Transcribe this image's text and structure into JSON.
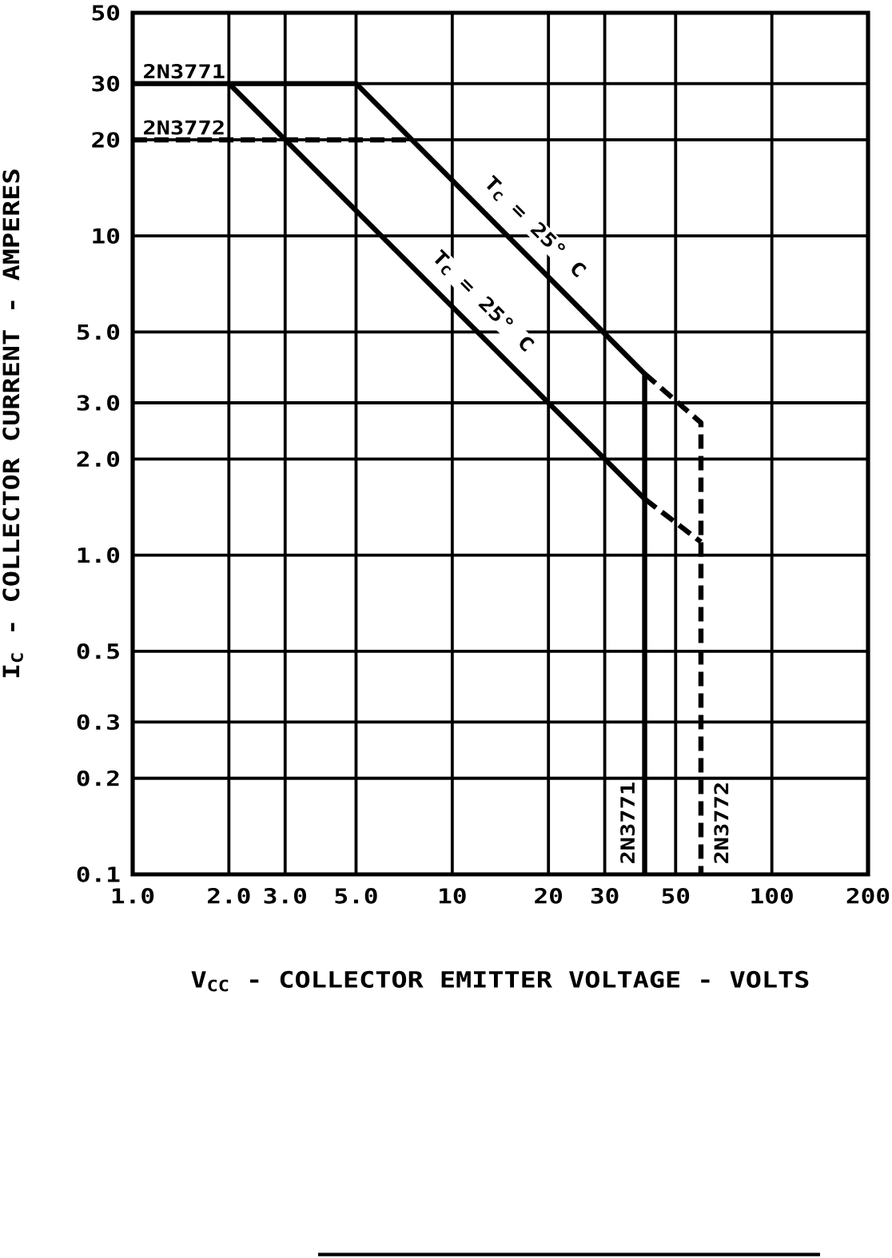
{
  "chart_data": {
    "type": "line",
    "xlabel": "V$_{CC}$ - COLLECTOR EMITTER VOLTAGE - VOLTS",
    "ylabel": "I$_{C}$ - COLLECTOR CURRENT - AMPERES",
    "log": "xy",
    "grid": true,
    "xlim": [
      1,
      200
    ],
    "ylim": [
      0.1,
      50
    ],
    "xticks": [
      {
        "value": 1,
        "label": "1.0"
      },
      {
        "value": 2,
        "label": "2.0"
      },
      {
        "value": 3,
        "label": "3.0"
      },
      {
        "value": 5,
        "label": "5.0"
      },
      10,
      20,
      30,
      50,
      100,
      200
    ],
    "yticks": [
      0.1,
      0.2,
      0.3,
      0.5,
      {
        "value": 1,
        "label": "1.0"
      },
      {
        "value": 2,
        "label": "2.0"
      },
      {
        "value": 3,
        "label": "3.0"
      },
      {
        "value": 5,
        "label": "5.0"
      },
      10,
      20,
      30,
      50
    ],
    "series": [
      {
        "color": "#000000",
        "line_style": "solid",
        "x": [
          1,
          5,
          40,
          40
        ],
        "values": [
          30,
          30,
          3.7,
          0.1
        ]
      },
      {
        "color": "#000000",
        "line_style": "solid",
        "x": [
          2,
          40
        ],
        "values": [
          30,
          1.5
        ]
      },
      {
        "color": "#000000",
        "line_style": "dashed",
        "x": [
          1,
          7.5
        ],
        "values": [
          20,
          20
        ]
      },
      {
        "color": "#000000",
        "line_style": "dashed",
        "x": [
          40,
          60,
          60
        ],
        "values": [
          3.7,
          2.6,
          0.1
        ]
      },
      {
        "color": "#000000",
        "line_style": "dashed",
        "x": [
          40,
          60
        ],
        "values": [
          1.5,
          1.1
        ]
      }
    ],
    "annotations": [
      {
        "text": "2N3771",
        "x": 1,
        "y": 30
      },
      {
        "text": "2N3772",
        "x": 1,
        "y": 20
      },
      {
        "text": "T$_{C}$ = 25° C",
        "x": 16,
        "y": 9.4
      },
      {
        "text": "T$_{C}$ = 25° C",
        "x": 11,
        "y": 5.5
      },
      {
        "text": "2N3771",
        "x": 40,
        "y": 0.1
      },
      {
        "text": "2N3772",
        "x": 60,
        "y": 0.1
      }
    ]
  }
}
